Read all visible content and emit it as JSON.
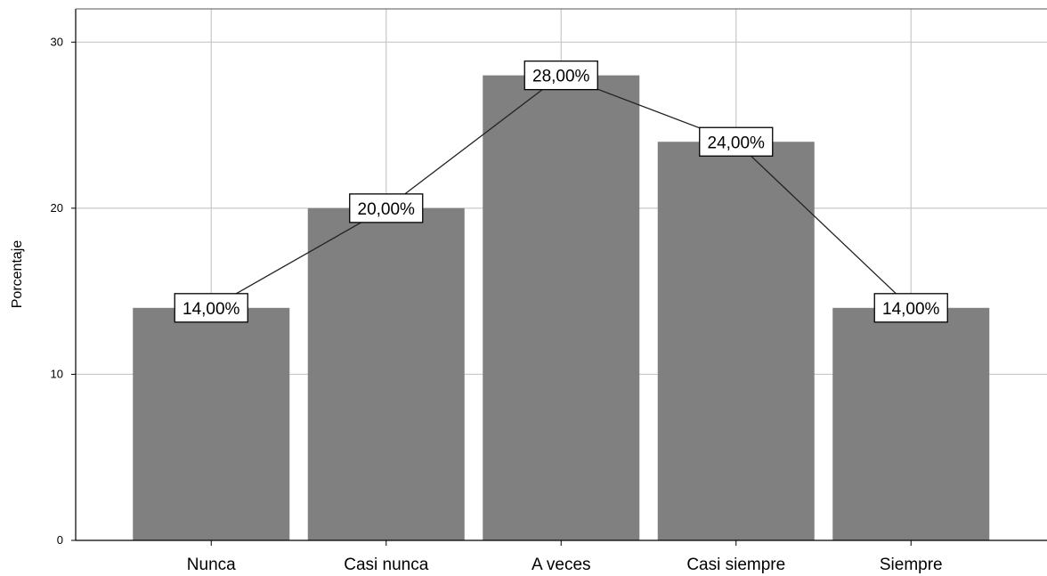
{
  "chart_data": {
    "type": "bar",
    "categories": [
      "Nunca",
      "Casi nunca",
      "A veces",
      "Casi siempre",
      "Siempre"
    ],
    "values": [
      14,
      20,
      28,
      24,
      14
    ],
    "data_labels": [
      "14,00%",
      "20,00%",
      "28,00%",
      "24,00%",
      "14,00%"
    ],
    "overlay": "line",
    "title": "",
    "xlabel": "",
    "ylabel": "Porcentaje",
    "ylim": [
      0,
      32
    ],
    "yticks": [
      0,
      10,
      20,
      30
    ],
    "grid": true,
    "colors": {
      "bar": "#808080",
      "line": "#222222",
      "grid": "#c8c8c8",
      "axis": "#000000",
      "label_box_fill": "#ffffff",
      "label_box_border": "#000000"
    }
  }
}
